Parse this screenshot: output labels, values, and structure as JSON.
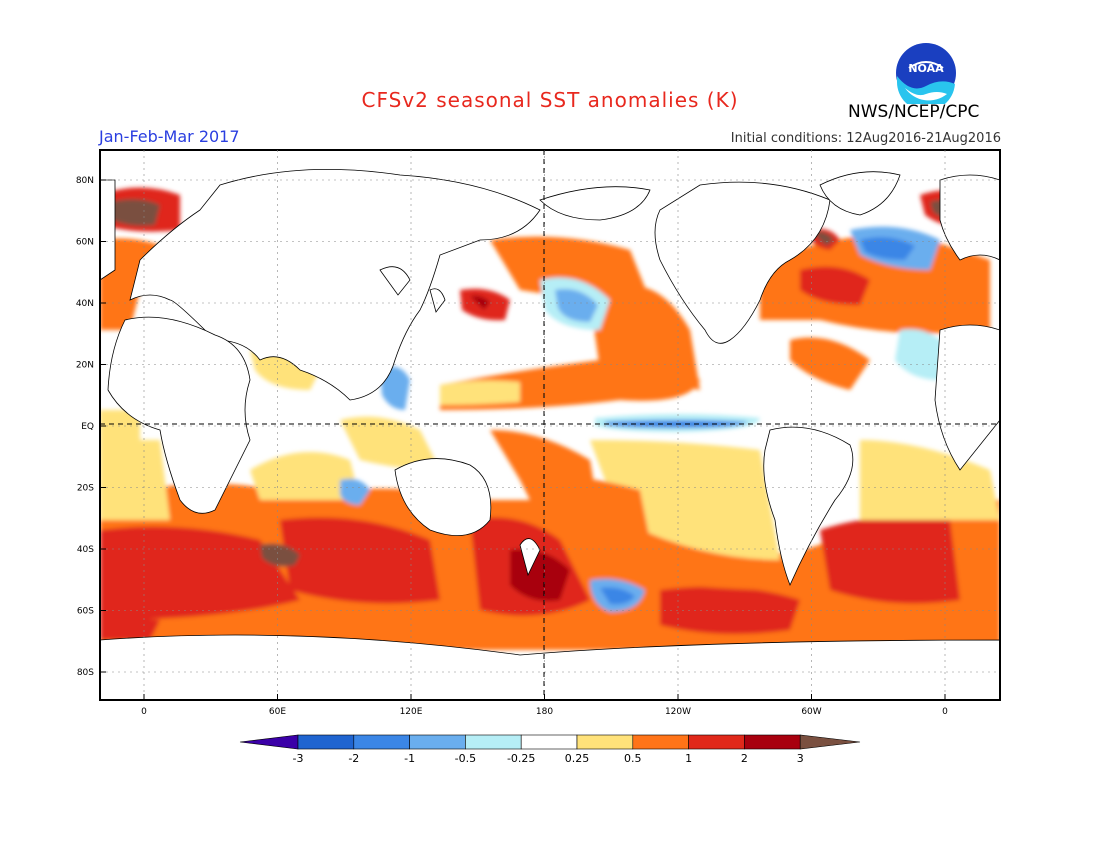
{
  "header": {
    "title": "CFSv2 seasonal SST anomalies (K)",
    "period": "Jan-Feb-Mar 2017",
    "initial_conditions": "Initial conditions: 12Aug2016-21Aug2016",
    "agency": "NWS/NCEP/CPC",
    "logo_text": "NOAA"
  },
  "map": {
    "lat_ticks": [
      "80N",
      "60N",
      "40N",
      "20N",
      "EQ",
      "20S",
      "40S",
      "60S",
      "80S"
    ],
    "lon_ticks": [
      "0",
      "60E",
      "120E",
      "180",
      "120W",
      "60W",
      "0"
    ]
  },
  "colorbar": {
    "labels": [
      "-3",
      "-2",
      "-1",
      "-0.5",
      "-0.25",
      "0.25",
      "0.5",
      "1",
      "2",
      "3"
    ],
    "colors": [
      "#3b00a8",
      "#1f64d0",
      "#3b86e6",
      "#6aaeee",
      "#b6eef6",
      "#ffffff",
      "#ffe27a",
      "#ff7418",
      "#e0281a",
      "#a8000e",
      "#7a5040"
    ]
  }
}
